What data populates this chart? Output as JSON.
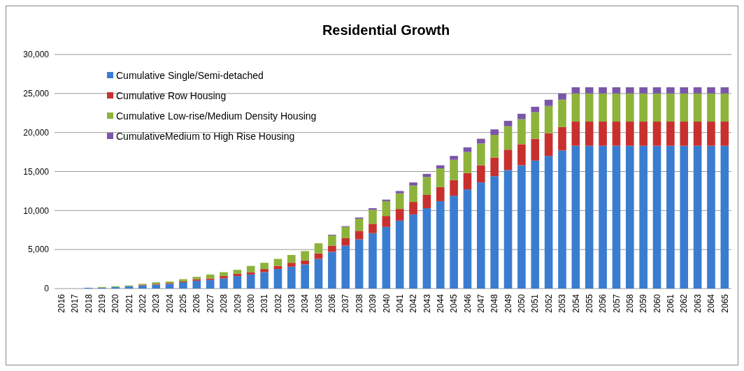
{
  "chart_data": {
    "type": "bar",
    "title": "Residential Growth",
    "stacked": true,
    "grid": "y",
    "legend": "top left",
    "categories": [
      "2016",
      "2017",
      "2018",
      "2019",
      "2020",
      "2021",
      "2022",
      "2023",
      "2024",
      "2025",
      "2026",
      "2027",
      "2028",
      "2029",
      "2030",
      "2031",
      "2032",
      "2033",
      "2034",
      "2035",
      "2036",
      "2037",
      "2038",
      "2039",
      "2040",
      "2041",
      "2042",
      "2043",
      "2044",
      "2045",
      "2046",
      "2047",
      "2048",
      "2049",
      "2050",
      "2051",
      "2052",
      "2053",
      "2054",
      "2055",
      "2056",
      "2057",
      "2058",
      "2059",
      "2060",
      "2061",
      "2062",
      "2063",
      "2064",
      "2065"
    ],
    "ylim": [
      0,
      30000
    ],
    "yticks": [
      {
        "value": 0,
        "label": "0"
      },
      {
        "value": 5000,
        "label": "5,000"
      },
      {
        "value": 10000,
        "label": "10,000"
      },
      {
        "value": 15000,
        "label": "15,000"
      },
      {
        "value": 20000,
        "label": "20,000"
      },
      {
        "value": 25000,
        "label": "25,000"
      },
      {
        "value": 30000,
        "label": "30,000"
      }
    ],
    "series": [
      {
        "name": "Cumulative Single/Semi-detached",
        "color": "#3a7dd0",
        "values": [
          0,
          0,
          100,
          100,
          200,
          300,
          400,
          500,
          600,
          800,
          1000,
          1100,
          1300,
          1600,
          1800,
          2100,
          2500,
          2800,
          3100,
          3800,
          4700,
          5500,
          6300,
          7100,
          7900,
          8700,
          9500,
          10300,
          11200,
          11900,
          12700,
          13600,
          14400,
          15200,
          15800,
          16400,
          17000,
          17700,
          18300,
          18300,
          18300,
          18300,
          18300,
          18300,
          18300,
          18300,
          18300,
          18300,
          18300,
          18300
        ]
      },
      {
        "name": "Cumulative Row Housing",
        "color": "#c8302e",
        "values": [
          0,
          0,
          0,
          0,
          0,
          0,
          100,
          100,
          100,
          100,
          200,
          200,
          300,
          300,
          300,
          400,
          400,
          500,
          500,
          700,
          800,
          950,
          1100,
          1200,
          1400,
          1500,
          1600,
          1700,
          1800,
          2000,
          2100,
          2200,
          2400,
          2600,
          2700,
          2800,
          2900,
          3000,
          3100,
          3100,
          3100,
          3100,
          3100,
          3100,
          3100,
          3100,
          3100,
          3100,
          3100,
          3100
        ]
      },
      {
        "name": "Cumulative Low-rise/Medium Density Housing",
        "color": "#8db33a",
        "values": [
          0,
          0,
          0,
          100,
          100,
          100,
          100,
          200,
          200,
          300,
          300,
          500,
          500,
          500,
          800,
          800,
          900,
          1000,
          1200,
          1300,
          1300,
          1450,
          1550,
          1800,
          1900,
          2000,
          2100,
          2300,
          2400,
          2600,
          2700,
          2800,
          2900,
          3000,
          3200,
          3400,
          3500,
          3500,
          3600,
          3600,
          3600,
          3600,
          3600,
          3600,
          3600,
          3600,
          3600,
          3600,
          3600,
          3600
        ]
      },
      {
        "name": "CumulativeMedium to High Rise Housing",
        "color": "#7a56a8",
        "values": [
          0,
          0,
          0,
          0,
          0,
          0,
          0,
          0,
          0,
          0,
          0,
          0,
          0,
          0,
          0,
          0,
          0,
          0,
          0,
          0,
          100,
          100,
          150,
          200,
          200,
          300,
          400,
          400,
          400,
          500,
          600,
          600,
          700,
          700,
          700,
          700,
          800,
          800,
          800,
          800,
          800,
          800,
          800,
          800,
          800,
          800,
          800,
          800,
          800,
          800
        ]
      }
    ]
  }
}
